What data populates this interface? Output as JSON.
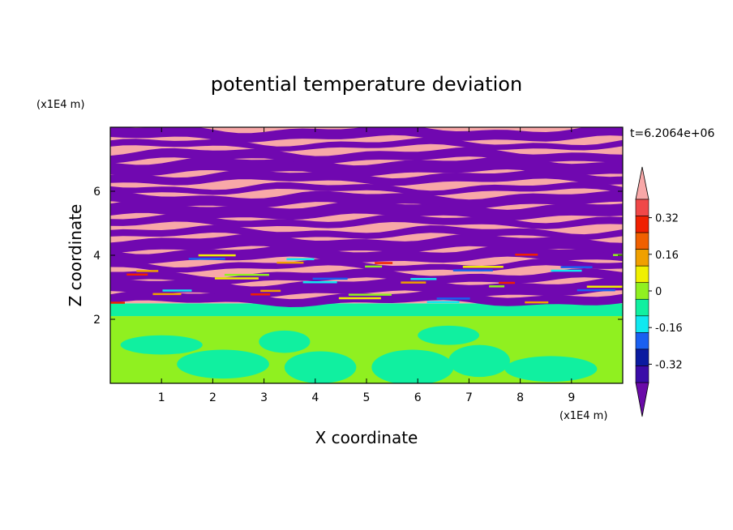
{
  "chart_data": {
    "type": "heatmap",
    "title": "potential temperature deviation",
    "xlabel": "X coordinate",
    "ylabel": "Z coordinate",
    "x_unit": "(x1E4 m)",
    "y_unit": "(x1E4 m)",
    "time_label": "t=6.2064e+06",
    "xlim": [
      0,
      10
    ],
    "ylim": [
      0,
      8
    ],
    "x_ticks": [
      1,
      2,
      3,
      4,
      5,
      6,
      7,
      8,
      9
    ],
    "y_ticks": [
      2,
      4,
      6
    ],
    "colorbar": {
      "levels": [
        -0.48,
        -0.4,
        -0.32,
        -0.24,
        -0.16,
        -0.08,
        0,
        0.08,
        0.16,
        0.24,
        0.32,
        0.4,
        0.48
      ],
      "colors": [
        "#6a0aa8",
        "#3a0ca8",
        "#0a1aa0",
        "#1a60f0",
        "#10e8f0",
        "#10f0a0",
        "#90f020",
        "#f0f000",
        "#f0a000",
        "#f06000",
        "#f02000",
        "#f04848",
        "#f8a8a8"
      ],
      "under_color": "#6a0aa8",
      "over_color": "#f8a8a8",
      "tick_labels": [
        "0.32",
        "0.16",
        "0",
        "-0.16",
        "-0.32"
      ],
      "tick_values": [
        0.32,
        0.16,
        0,
        -0.16,
        -0.32
      ]
    },
    "regions": {
      "stratified_layer_z": [
        2.5,
        8
      ],
      "mixed_layer_z": [
        0,
        2.1
      ],
      "transition_z": [
        2.1,
        2.5
      ],
      "stratified_colors": [
        "#f8a8a8",
        "#7008b0"
      ],
      "mixed_colors": [
        "#90f020",
        "#10f0a0"
      ]
    }
  }
}
